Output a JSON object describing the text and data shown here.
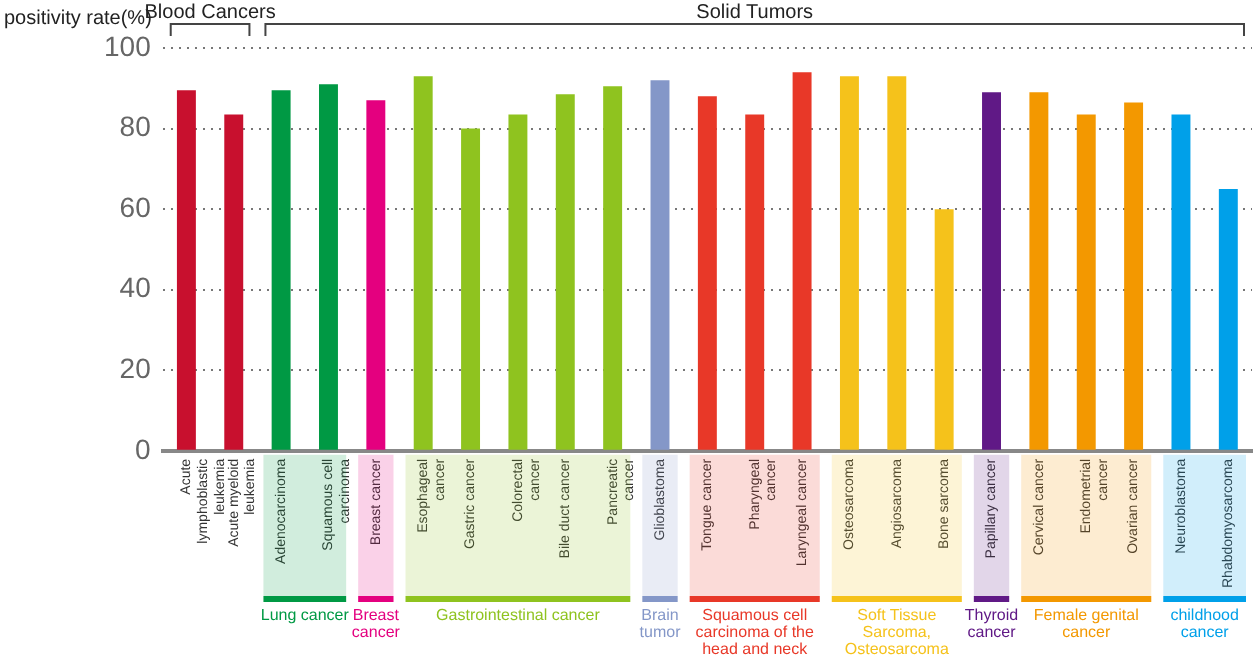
{
  "chart_data": {
    "type": "bar",
    "ylabel": "positivity rate(%)",
    "categories": [
      "Acute lymphoblastic leukemia",
      "Acute myeloid leukemia",
      "Adenocarcinoma",
      "Squamous cell carcinoma",
      "Breast cancer",
      "Esophageal cancer",
      "Gastric cancer",
      "Colorectal cancer",
      "Bile duct cancer",
      "Pancreatic cancer",
      "Glioblastoma",
      "Tongue cancer",
      "Pharyngeal cancer",
      "Laryngeal cancer",
      "Osteosarcoma",
      "Angiosarcoma",
      "Bone sarcoma",
      "Papillary cancer",
      "Cervical cancer",
      "Endometrial cancer",
      "Ovarian cancer",
      "Neuroblastoma",
      "Rhabdomyosarcoma"
    ],
    "values": [
      89.5,
      83.5,
      89.5,
      91,
      87,
      93,
      80,
      83.5,
      88.5,
      90.5,
      92,
      88,
      83.5,
      94,
      93,
      93,
      60,
      89,
      89,
      83.5,
      86.5,
      83.5,
      65
    ],
    "colors": [
      "#c8102e",
      "#c8102e",
      "#009944",
      "#009944",
      "#e4007f",
      "#8fc31f",
      "#8fc31f",
      "#8fc31f",
      "#8fc31f",
      "#8fc31f",
      "#8497c8",
      "#e83828",
      "#e83828",
      "#e83828",
      "#f5c21b",
      "#f5c21b",
      "#f5c21b",
      "#601986",
      "#f39800",
      "#f39800",
      "#f39800",
      "#00a0e9",
      "#00a0e9"
    ],
    "ylim": [
      0,
      100
    ],
    "yticks": [
      0,
      20,
      40,
      60,
      80,
      100
    ],
    "grid": "y",
    "annotations": [
      "Blood Cancers",
      "Solid Tumors",
      "Lung cancer",
      "Breast cancer",
      "Gastrointestinal cancer",
      "Brain tumor",
      "Squamous cell carcinoma of the head and neck",
      "Soft Tissue Sarcoma, Osteosarcoma",
      "Thyroid cancer",
      "Female genital cancer",
      "childhood cancer"
    ]
  }
}
